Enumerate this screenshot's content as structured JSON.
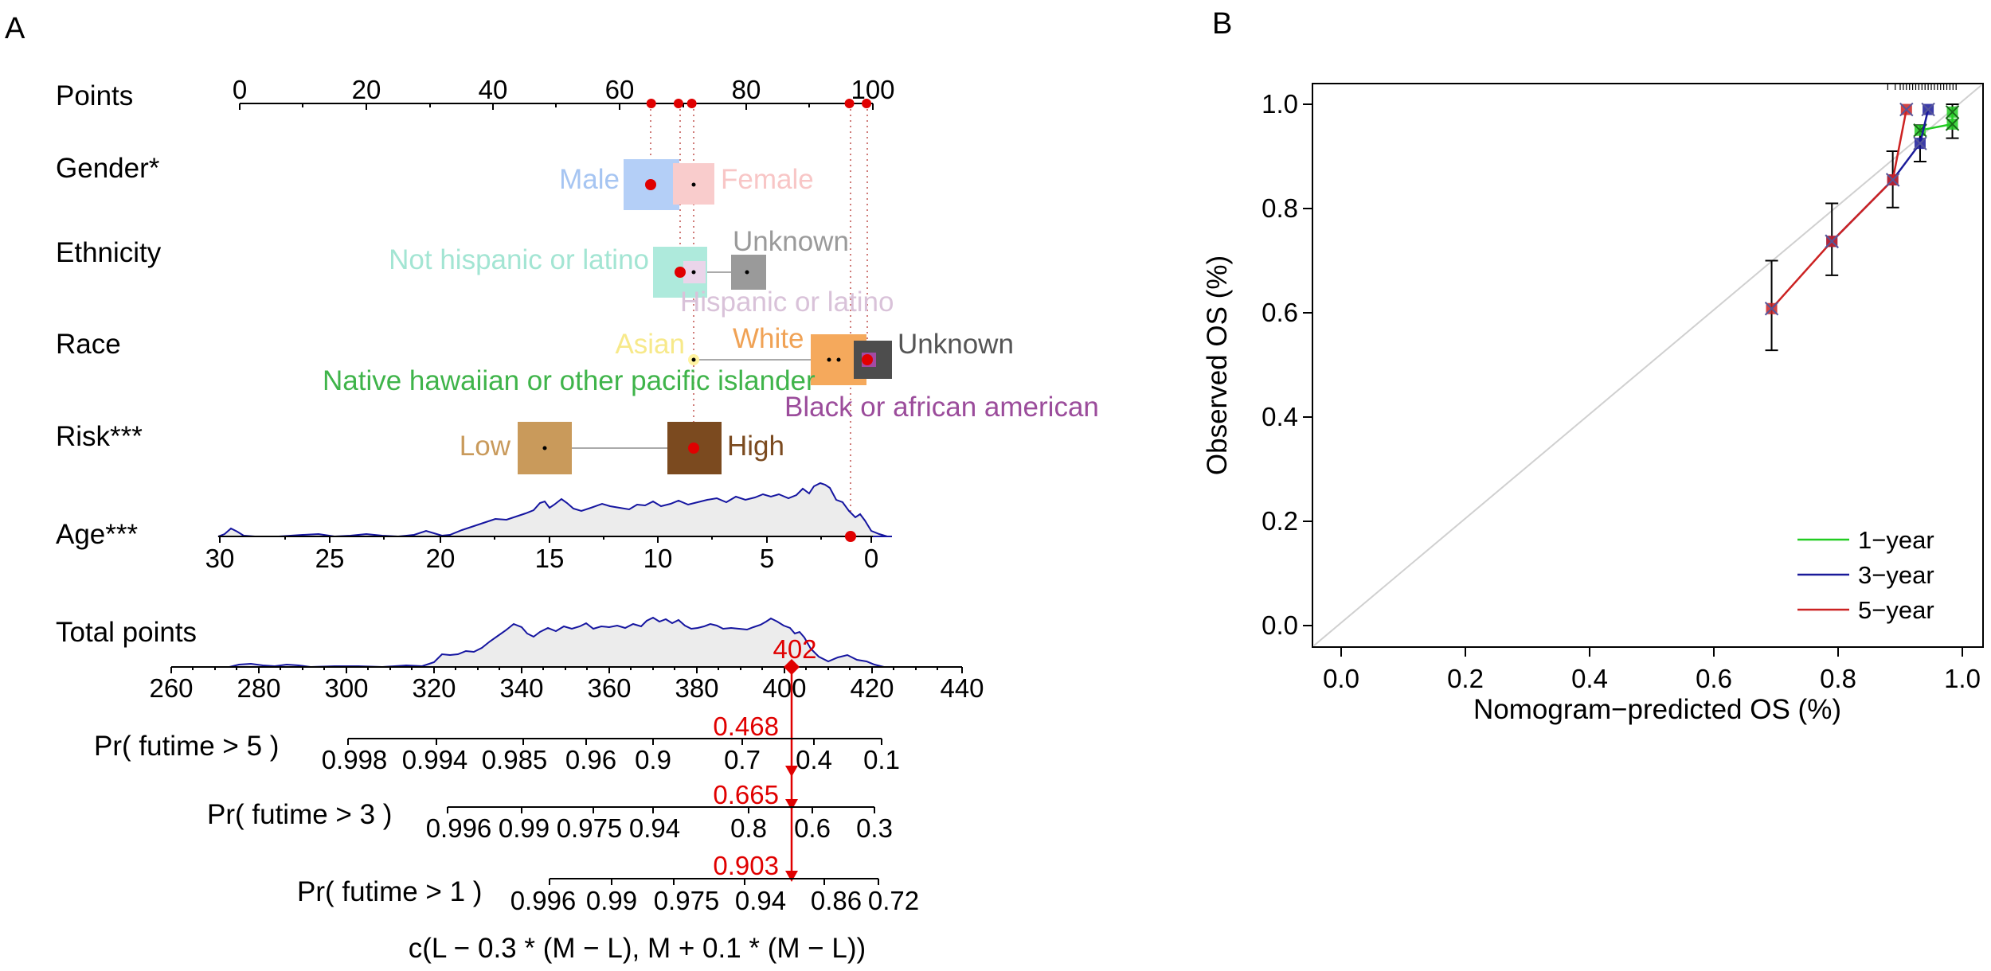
{
  "panel_labels": {
    "a": "A",
    "b": "B"
  },
  "nomogram": {
    "points_scale": {
      "label": "Points",
      "ticks": [
        "0",
        "20",
        "40",
        "60",
        "80",
        "100"
      ]
    },
    "markers": {
      "points_axis": [
        65,
        69.3,
        71.4,
        96.3,
        99
      ],
      "gender": 65,
      "ethnicity": 69.3,
      "race": 99,
      "risk": 71.4,
      "age": 96.3
    },
    "gender": {
      "label": "Gender*",
      "male": "Male",
      "female": "Female"
    },
    "ethnicity": {
      "label": "Ethnicity",
      "not_hispanic": "Not hispanic or latino",
      "unknown": "Unknown",
      "hispanic": "Hispanic or latino"
    },
    "race": {
      "label": "Race",
      "asian": "Asian",
      "white": "White",
      "unknown": "Unknown",
      "native_hawaiian": "Native hawaiian or other pacific islander",
      "black": "Black or african american"
    },
    "risk": {
      "label": "Risk***",
      "low": "Low",
      "high": "High"
    },
    "age": {
      "label": "Age***",
      "ticks": [
        "30",
        "25",
        "20",
        "15",
        "10",
        "5",
        "0"
      ]
    },
    "total_points": {
      "label": "Total points",
      "ticks": [
        "260",
        "280",
        "300",
        "320",
        "340",
        "360",
        "380",
        "400",
        "420",
        "440"
      ],
      "value": "402"
    },
    "pr5": {
      "label": "Pr( futime > 5 )",
      "ticks": [
        "0.998",
        "0.994",
        "0.985",
        "0.96",
        "0.9",
        "0.7",
        "0.4",
        "0.1"
      ],
      "value": "0.468"
    },
    "pr3": {
      "label": "Pr( futime > 3 )",
      "ticks": [
        "0.996",
        "0.99",
        "0.975",
        "0.94",
        "0.8",
        "0.6",
        "0.3"
      ],
      "value": "0.665"
    },
    "pr1": {
      "label": "Pr( futime > 1 )",
      "ticks": [
        "0.996",
        "0.99",
        "0.975",
        "0.94",
        "0.86",
        "0.72"
      ],
      "value": "0.903"
    },
    "formula": "c(L − 0.3 * (M − L), M + 0.1 * (M − L))"
  },
  "chart_data": [
    {
      "type": "nomogram",
      "title": "",
      "variables": [
        {
          "name": "Gender*",
          "levels": [
            "Male",
            "Female"
          ],
          "points": [
            65,
            71
          ]
        },
        {
          "name": "Ethnicity",
          "levels": [
            "Not hispanic or latino",
            "Hispanic or latino",
            "Unknown"
          ],
          "points": [
            69,
            71,
            80
          ]
        },
        {
          "name": "Race",
          "levels": [
            "Asian",
            "Native hawaiian or other pacific islander",
            "White",
            "Black or african american",
            "Unknown"
          ],
          "points": [
            71,
            71,
            94,
            99,
            100
          ]
        },
        {
          "name": "Risk***",
          "levels": [
            "Low",
            "High"
          ],
          "points": [
            48,
            71
          ]
        },
        {
          "name": "Age***",
          "range": [
            30,
            0
          ],
          "points_range": [
            -3.5,
            100
          ]
        }
      ],
      "patient_total_points": 402,
      "predicted": {
        "Pr( futime > 5 )": 0.468,
        "Pr( futime > 3 )": 0.665,
        "Pr( futime > 1 )": 0.903
      }
    },
    {
      "type": "line",
      "title": "",
      "xlabel": "Nomogram−predicted OS (%)",
      "ylabel": "Observed OS (%)",
      "xlim": [
        -0.03,
        1.03
      ],
      "ylim": [
        -0.04,
        1.04
      ],
      "xticks": [
        "0.0",
        "0.2",
        "0.4",
        "0.6",
        "0.8",
        "1.0"
      ],
      "yticks": [
        "0.0",
        "0.2",
        "0.4",
        "0.6",
        "0.8",
        "1.0"
      ],
      "legend_position": "bottom-right",
      "series": [
        {
          "name": "1−year",
          "color": "#22cc22",
          "x": [
            0.932,
            0.984,
            0.984
          ],
          "y": [
            0.95,
            0.962,
            0.985
          ]
        },
        {
          "name": "3−year",
          "color": "#1a1a9a",
          "x": [
            0.79,
            0.888,
            0.932,
            0.945
          ],
          "y": [
            0.737,
            0.855,
            0.925,
            0.99
          ]
        },
        {
          "name": "5−year",
          "color": "#cc2222",
          "x": [
            0.693,
            0.79,
            0.888,
            0.91
          ],
          "y": [
            0.608,
            0.737,
            0.855,
            0.99
          ]
        }
      ],
      "error_bars": [
        {
          "x": 0.693,
          "low": 0.528,
          "high": 0.7
        },
        {
          "x": 0.79,
          "low": 0.672,
          "high": 0.81
        },
        {
          "x": 0.888,
          "low": 0.802,
          "high": 0.91
        },
        {
          "x": 0.932,
          "low": 0.89,
          "high": 0.96
        },
        {
          "x": 0.984,
          "low": 0.935,
          "high": 1.0
        }
      ]
    }
  ]
}
